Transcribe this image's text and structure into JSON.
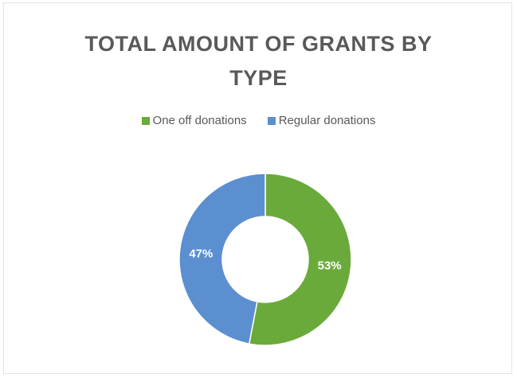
{
  "chart_data": {
    "type": "pie",
    "title_lines": [
      "TOTAL AMOUNT OF GRANTS BY",
      "TYPE"
    ],
    "donut": true,
    "legend_position": "top",
    "categories": [
      "One off donations",
      "Regular donations"
    ],
    "values": [
      53,
      47
    ],
    "data_labels": [
      "53%",
      "47%"
    ],
    "colors": [
      "#6aaa3a",
      "#5b8fd0"
    ]
  }
}
